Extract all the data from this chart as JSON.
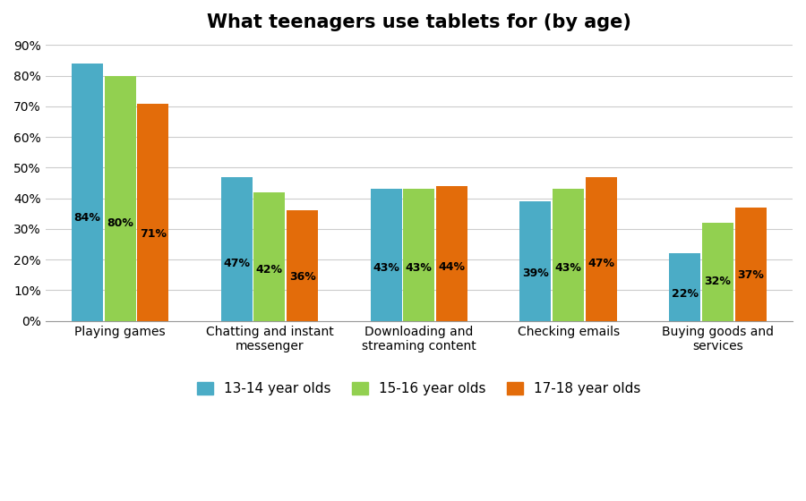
{
  "title": "What teenagers use tablets for (by age)",
  "categories": [
    "Playing games",
    "Chatting and instant\nmessenger",
    "Downloading and\nstreaming content",
    "Checking emails",
    "Buying goods and\nservices"
  ],
  "series": {
    "13-14 year olds": [
      84,
      47,
      43,
      39,
      22
    ],
    "15-16 year olds": [
      80,
      42,
      43,
      43,
      32
    ],
    "17-18 year olds": [
      71,
      36,
      44,
      47,
      37
    ]
  },
  "colors": {
    "13-14 year olds": "#4BACC6",
    "15-16 year olds": "#92D050",
    "17-18 year olds": "#E36C0A"
  },
  "ylim": [
    0,
    90
  ],
  "yticks": [
    0,
    10,
    20,
    30,
    40,
    50,
    60,
    70,
    80,
    90
  ],
  "ytick_labels": [
    "0%",
    "10%",
    "20%",
    "30%",
    "40%",
    "50%",
    "60%",
    "70%",
    "80%",
    "90%"
  ],
  "background_color": "#ffffff",
  "plot_background": "#ffffff",
  "grid_color": "#cccccc",
  "bar_width": 0.22,
  "title_fontsize": 15,
  "label_fontsize": 10,
  "tick_fontsize": 10,
  "legend_fontsize": 11,
  "annot_fontsize": 9
}
